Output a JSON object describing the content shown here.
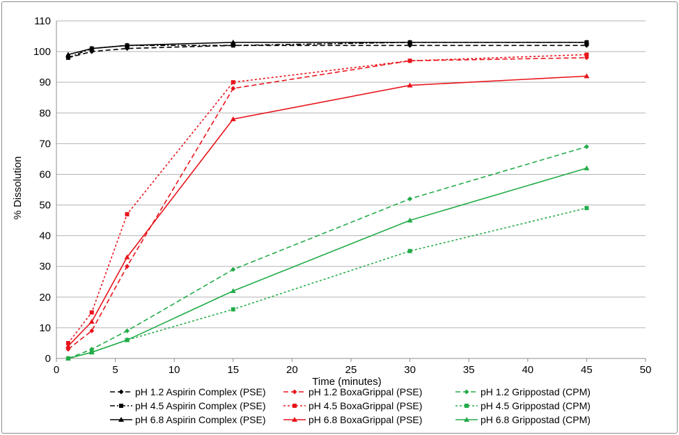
{
  "chart_data": {
    "type": "line",
    "title": "",
    "xlabel": "Time (minutes)",
    "ylabel": "% Dissolution",
    "xlim": [
      0,
      50
    ],
    "ylim": [
      0,
      110
    ],
    "xticks": [
      "0",
      "5",
      "10",
      "15",
      "20",
      "25",
      "30",
      "35",
      "40",
      "45",
      "50"
    ],
    "yticks": [
      "0",
      "10",
      "20",
      "30",
      "40",
      "50",
      "60",
      "70",
      "80",
      "90",
      "100",
      "110"
    ],
    "grid": "horizontal",
    "legend_position": "bottom",
    "colors": {
      "black": "#000000",
      "red": "#e8141b",
      "green": "#22ac48"
    },
    "series": [
      {
        "name": "pH 1.2 Aspirin Complex (PSE)",
        "color": "#000000",
        "dash": "dashed",
        "marker": "diamond",
        "x": [
          1,
          3,
          6,
          15,
          30,
          45
        ],
        "y": [
          98,
          100,
          101,
          102,
          102,
          102
        ]
      },
      {
        "name": "pH 4.5 Aspirin Complex (PSE)",
        "color": "#000000",
        "dash": "dashdot",
        "marker": "square",
        "x": [
          1,
          3,
          6,
          15,
          30,
          45
        ],
        "y": [
          98,
          101,
          102,
          102,
          103,
          103
        ]
      },
      {
        "name": "pH 6.8 Aspirin Complex (PSE)",
        "color": "#000000",
        "dash": "solid",
        "marker": "triangle",
        "x": [
          1,
          3,
          6,
          15,
          30,
          45
        ],
        "y": [
          99,
          101,
          102,
          103,
          103,
          103
        ]
      },
      {
        "name": "pH 1.2 BoxaGrippal (PSE)",
        "color": "#e8141b",
        "dash": "dashed",
        "marker": "diamond",
        "x": [
          1,
          3,
          6,
          15,
          30,
          45
        ],
        "y": [
          3,
          9,
          30,
          88,
          97,
          98
        ]
      },
      {
        "name": "pH 4.5 BoxaGrippal (PSE)",
        "color": "#e8141b",
        "dash": "dotted",
        "marker": "square",
        "x": [
          1,
          3,
          6,
          15,
          30,
          45
        ],
        "y": [
          5,
          15,
          47,
          90,
          97,
          99
        ]
      },
      {
        "name": "pH 6.8 BoxaGrippal (PSE)",
        "color": "#e8141b",
        "dash": "solid",
        "marker": "triangle",
        "x": [
          1,
          3,
          6,
          15,
          30,
          45
        ],
        "y": [
          4,
          12,
          33,
          78,
          89,
          92
        ]
      },
      {
        "name": "pH 1.2 Grippostad (CPM)",
        "color": "#22ac48",
        "dash": "dashed",
        "marker": "diamond",
        "x": [
          1,
          3,
          6,
          15,
          30,
          45
        ],
        "y": [
          0,
          3,
          9,
          29,
          52,
          69
        ]
      },
      {
        "name": "pH 4.5 Grippostad (CPM)",
        "color": "#22ac48",
        "dash": "dotted",
        "marker": "square",
        "x": [
          1,
          3,
          6,
          15,
          30,
          45
        ],
        "y": [
          0,
          2,
          6,
          16,
          35,
          49
        ]
      },
      {
        "name": "pH 6.8 Grippostad (CPM)",
        "color": "#22ac48",
        "dash": "solid",
        "marker": "triangle",
        "x": [
          1,
          3,
          6,
          15,
          30,
          45
        ],
        "y": [
          0,
          2,
          6,
          22,
          45,
          62
        ]
      }
    ]
  }
}
